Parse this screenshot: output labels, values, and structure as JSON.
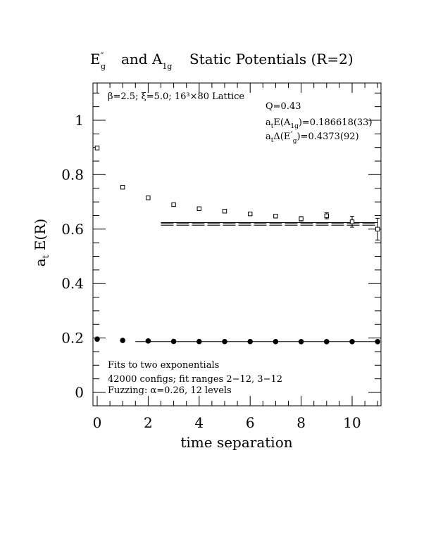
{
  "chart_data": {
    "type": "scatter",
    "title": {
      "E_label": "E",
      "E_prime": "″",
      "E_sub": "g",
      "middle": "and A",
      "A_sub": "1g",
      "rest": "Static Potentials (R=2)"
    },
    "xlabel": "time separation",
    "ylabel": {
      "a": "a",
      "sub": "t",
      "rest": " E(R)"
    },
    "xlim": [
      0,
      11.1
    ],
    "ylim": [
      -0.05,
      1.13
    ],
    "x_ticks": [
      0,
      2,
      4,
      6,
      8,
      10
    ],
    "x_tick_labels": [
      "0",
      "2",
      "4",
      "6",
      "8",
      "10"
    ],
    "y_ticks": [
      0,
      0.2,
      0.4,
      0.6,
      0.8,
      1
    ],
    "y_tick_labels": [
      "0",
      "0.2",
      "0.4",
      "0.6",
      "0.8",
      "1"
    ],
    "x_minor_step": 0.5,
    "y_minor_step": 0.05,
    "series": [
      {
        "marker": "filled-circle",
        "x": [
          0,
          1,
          2,
          3,
          4,
          5,
          6,
          7,
          8,
          9,
          10,
          11
        ],
        "y": [
          0.196,
          0.191,
          0.189,
          0.1875,
          0.187,
          0.187,
          0.187,
          0.1867,
          0.1866,
          0.1866,
          0.1866,
          0.1866
        ],
        "yerr": [
          0,
          0,
          0,
          0,
          0,
          0,
          0,
          0,
          0,
          0,
          0,
          0
        ]
      },
      {
        "marker": "open-square",
        "x": [
          0,
          1,
          2,
          3,
          4,
          5,
          6,
          7,
          8,
          9,
          10,
          11
        ],
        "y": [
          0.898,
          0.754,
          0.715,
          0.69,
          0.675,
          0.666,
          0.656,
          0.648,
          0.638,
          0.649,
          0.627,
          0.6
        ],
        "yerr": [
          0,
          0,
          0,
          0,
          0.004,
          0.005,
          0.006,
          0.007,
          0.008,
          0.011,
          0.02,
          0.04
        ]
      }
    ],
    "fit_lines": [
      {
        "x_range": [
          1.5,
          11
        ],
        "y": 0.1866,
        "style": "solid"
      },
      {
        "x_range": [
          2.5,
          11
        ],
        "y": 0.624,
        "style": "solid"
      },
      {
        "x_range": [
          2.5,
          11
        ],
        "y": 0.6205,
        "style": "dashed"
      },
      {
        "x_range": [
          2.5,
          11
        ],
        "y": 0.6145,
        "style": "dashed"
      }
    ],
    "annotations": {
      "lattice": "β=2.5; ξ=5.0; 16³×80 Lattice",
      "q": "Q=0.43",
      "ae_a": "a",
      "ae_t": "t",
      "ae_mid": "E(A",
      "ae_sub": "1g",
      "ae_val": ")=0.186618(33)",
      "ad_a": "a",
      "ad_t": "t",
      "ad_mid": "Δ(E",
      "ad_prime": "″",
      "ad_sub": "g",
      "ad_val": ")=0.4373(92)",
      "fits": "Fits to two exponentials",
      "configs": "42000 configs; fit ranges 2−12, 3−12",
      "fuzzing": "Fuzzing: α=0.26, 12 levels"
    }
  }
}
